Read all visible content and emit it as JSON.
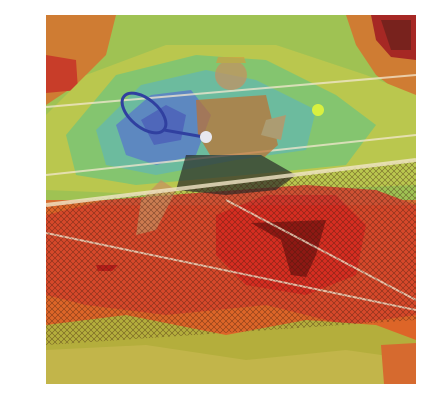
{
  "figure": {
    "description_icon": "tennis-player-heatmap-image",
    "colors": {
      "hot": "#e0301e",
      "warm": "#f08a30",
      "mid": "#d8d040",
      "cool": "#7fd07a",
      "cold": "#5aa8c8",
      "coldest": "#4a6fd0",
      "darkhot": "#8b1010",
      "court": "#a04a2a",
      "shirt": "#c07030",
      "skin": "#c89060",
      "ball": "#d8f040"
    }
  }
}
